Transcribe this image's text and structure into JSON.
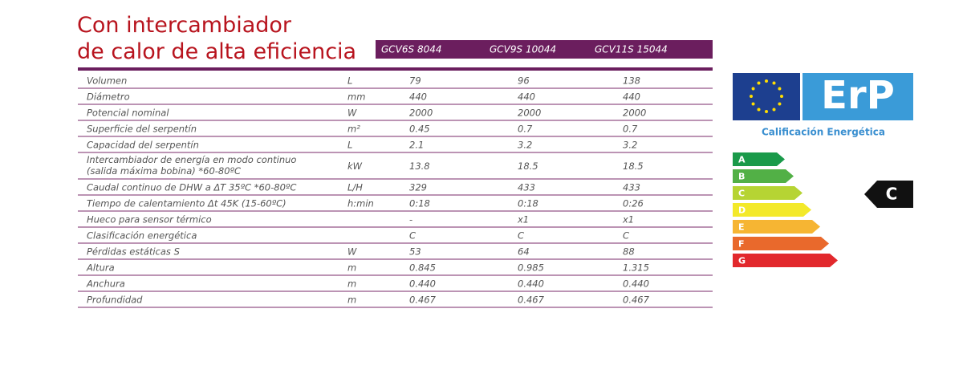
{
  "header": {
    "title": [
      "Con intercambiador",
      "de calor de alta eficiencia"
    ]
  },
  "table": {
    "columns": [
      "GCV6S 8044",
      "GCV9S 10044",
      "GCV11S 15044"
    ],
    "rows": [
      [
        "Volumen",
        "L",
        "79",
        "96",
        "138"
      ],
      [
        "Diámetro",
        "mm",
        "440",
        "440",
        "440"
      ],
      [
        "Potencial nominal",
        "W",
        "2000",
        "2000",
        "2000"
      ],
      [
        "Superficie del serpentín",
        "m²",
        "0.45",
        "0.7",
        "0.7"
      ],
      [
        "Capacidad del serpentín",
        "L",
        "2.1",
        "3.2",
        "3.2"
      ],
      [
        "Intercambiador de energía en modo continuo\n(salida máxima bobina) *60-80ºC",
        "kW",
        "13.8",
        "18.5",
        "18.5"
      ],
      [
        "Caudal continuo de DHW a ΔT 35ºC *60-80ºC",
        "L/H",
        "329",
        "433",
        "433"
      ],
      [
        "Tiempo de calentamiento Δt 45K (15-60ºC)",
        "h:min",
        "0:18",
        "0:18",
        "0:26"
      ],
      [
        "Hueco para sensor térmico",
        null,
        "-",
        "x1",
        "x1"
      ],
      [
        "Clasificación energética",
        null,
        "C",
        "C",
        "C"
      ],
      [
        "Pérdidas estáticas S",
        "W",
        "53",
        "64",
        "88"
      ],
      [
        "Altura",
        "m",
        "0.845",
        "0.985",
        "1.315"
      ],
      [
        "Anchura",
        "m",
        "0.440",
        "0.440",
        "0.440"
      ],
      [
        "Profundidad",
        "m",
        "0.467",
        "0.467",
        "0.467"
      ]
    ]
  },
  "energy_label": {
    "logo": "ErP",
    "caption": "Calificación Energética",
    "classes": [
      "A",
      "B",
      "C",
      "D",
      "E",
      "F",
      "G"
    ],
    "colors": [
      "#1a9a4a",
      "#52b046",
      "#b6d433",
      "#f3e92a",
      "#f6b533",
      "#e9692c",
      "#e2282c"
    ],
    "rating": "C"
  }
}
